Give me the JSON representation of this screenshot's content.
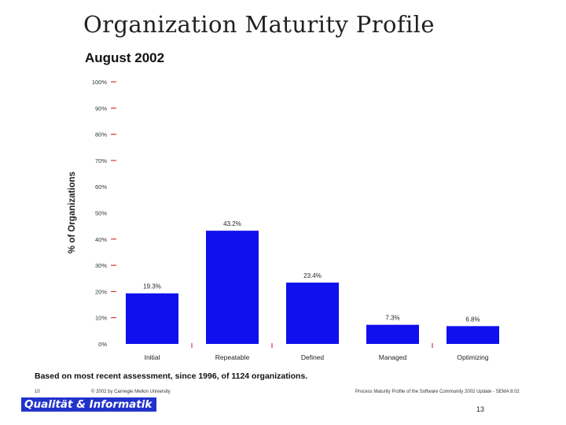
{
  "slide": {
    "title": "Organization Maturity Profile",
    "subtitle": "August 2002",
    "footnote": "Based on most recent assessment, since 1996, of 1124 organizations.",
    "footer_page_left": "10",
    "footer_copyright": "© 2002 by Carnegie Mellon University",
    "footer_source": "Process Maturity Profile of the Software Community 2002 Update - SEMA 8.02",
    "logo_text": "Qualität & Informatik",
    "page_number": "13"
  },
  "colors": {
    "bar": "#1010ee",
    "axis_tick": "#cc1111",
    "logo_bg": "#2233cc"
  },
  "chart_data": {
    "type": "bar",
    "title": "August 2002",
    "xlabel": "",
    "ylabel": "% of Organizations",
    "categories": [
      "Initial",
      "Repeatable",
      "Defined",
      "Managed",
      "Optimizing"
    ],
    "values": [
      19.3,
      43.2,
      23.4,
      7.3,
      6.8
    ],
    "data_labels": [
      "19.3%",
      "43.2%",
      "23.4%",
      "7.3%",
      "6.8%"
    ],
    "y_ticks": [
      {
        "value": 0,
        "label": "0%"
      },
      {
        "value": 10,
        "label": "10%"
      },
      {
        "value": 20,
        "label": "20%"
      },
      {
        "value": 30,
        "label": "30%"
      },
      {
        "value": 40,
        "label": "40%"
      },
      {
        "value": 50,
        "label": "50%"
      },
      {
        "value": 60,
        "label": "60%"
      },
      {
        "value": 70,
        "label": "70%"
      },
      {
        "value": 80,
        "label": "80%"
      },
      {
        "value": 90,
        "label": "90%"
      },
      {
        "value": 100,
        "label": "100%"
      }
    ],
    "ylim": [
      0,
      100
    ],
    "grid": false,
    "legend": "none"
  }
}
